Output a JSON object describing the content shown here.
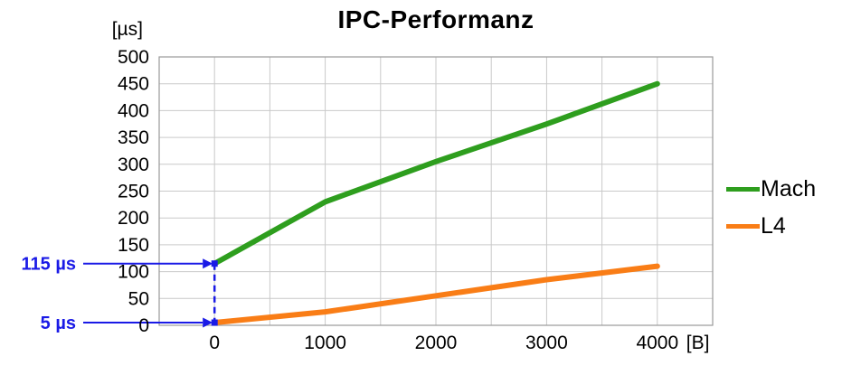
{
  "title": "IPC-Performanz",
  "y_axis_unit": "[µs]",
  "x_axis_unit": "[B]",
  "legend": {
    "items": [
      {
        "label": "Mach",
        "color": "#2e9e1e"
      },
      {
        "label": "L4",
        "color": "#f97d16"
      }
    ]
  },
  "chart_data": {
    "type": "line",
    "title": "IPC-Performanz",
    "xlabel": "[B]",
    "ylabel": "[µs]",
    "x": [
      0,
      1000,
      2000,
      3000,
      4000
    ],
    "series": [
      {
        "name": "Mach",
        "color": "#2e9e1e",
        "values": [
          115,
          230,
          305,
          375,
          450
        ]
      },
      {
        "name": "L4",
        "color": "#f97d16",
        "values": [
          5,
          25,
          55,
          85,
          110
        ]
      }
    ],
    "xlim": [
      -500,
      4500
    ],
    "ylim": [
      0,
      500
    ],
    "x_ticks": [
      0,
      1000,
      2000,
      3000,
      4000
    ],
    "y_ticks": [
      0,
      50,
      100,
      150,
      200,
      250,
      300,
      350,
      400,
      450,
      500
    ],
    "x_grid_step": 500,
    "grid": true,
    "legend_position": "right",
    "annotation_color": "#1a1ae6",
    "annotations": [
      {
        "label": "115 µs",
        "value": 115
      },
      {
        "label": "5 µs",
        "value": 5
      }
    ]
  }
}
